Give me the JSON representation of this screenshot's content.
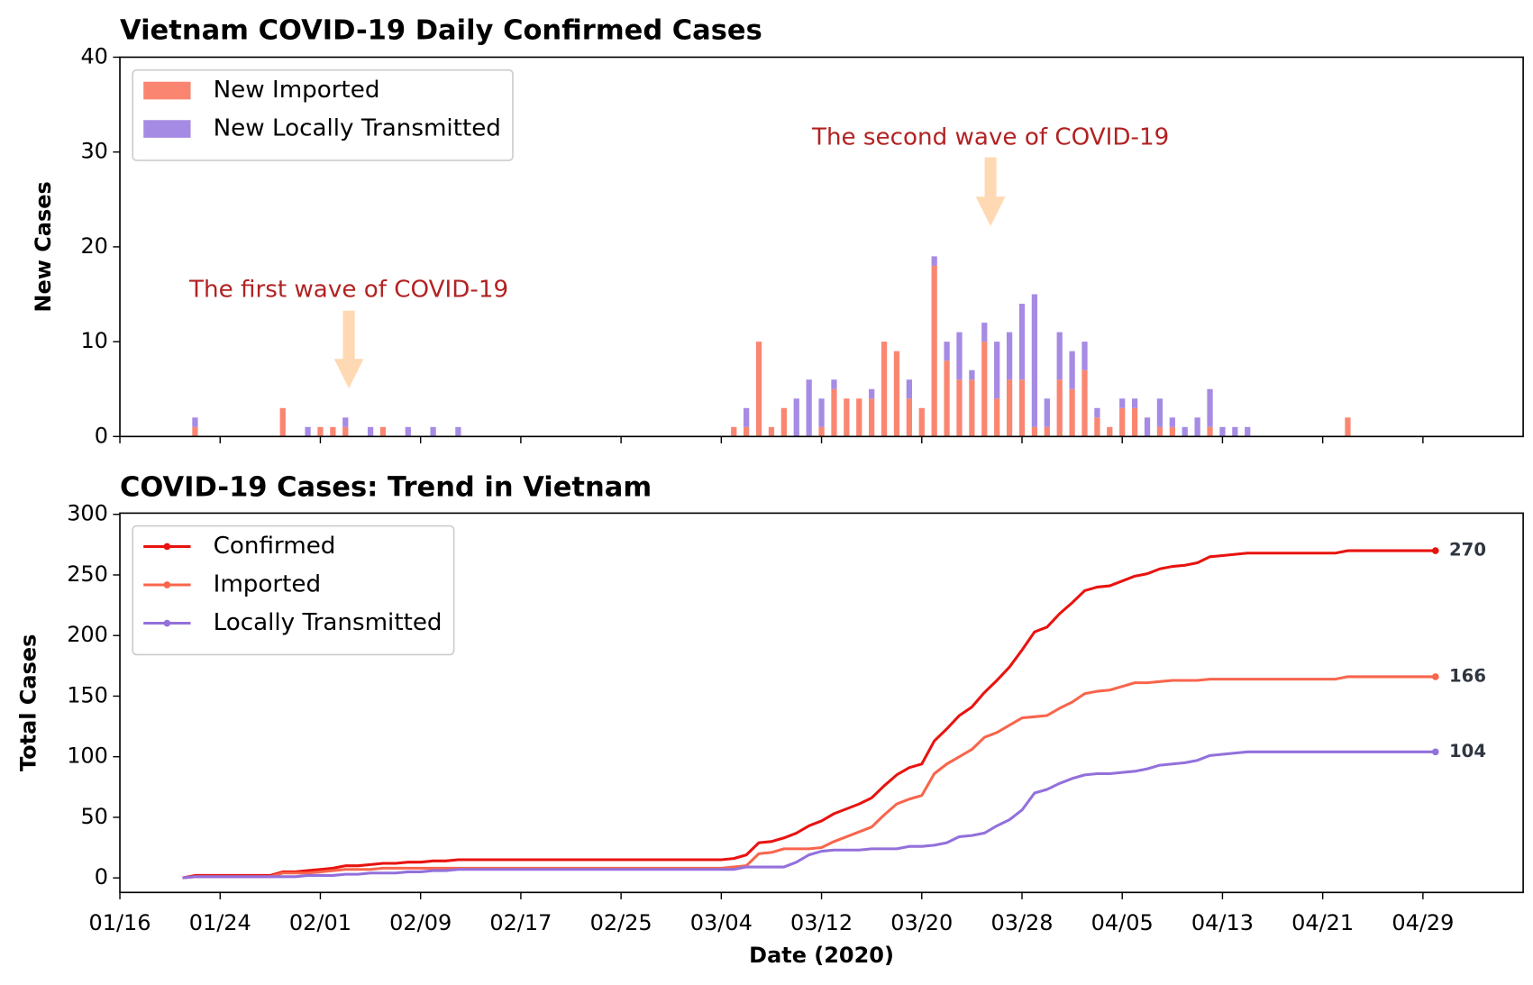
{
  "chart_data": [
    {
      "type": "bar",
      "stacked": true,
      "title": "Vietnam COVID-19 Daily Confirmed Cases",
      "ylabel": "New Cases",
      "x": [
        "01/22",
        "01/29",
        "01/31",
        "02/01",
        "02/02",
        "02/03",
        "02/05",
        "02/06",
        "02/08",
        "02/10",
        "02/12",
        "03/05",
        "03/06",
        "03/07",
        "03/08",
        "03/09",
        "03/10",
        "03/11",
        "03/12",
        "03/13",
        "03/14",
        "03/15",
        "03/16",
        "03/17",
        "03/18",
        "03/19",
        "03/20",
        "03/21",
        "03/22",
        "03/23",
        "03/24",
        "03/25",
        "03/26",
        "03/27",
        "03/28",
        "03/29",
        "03/30",
        "03/31",
        "04/01",
        "04/02",
        "04/03",
        "04/04",
        "04/05",
        "04/06",
        "04/07",
        "04/08",
        "04/09",
        "04/10",
        "04/11",
        "04/12",
        "04/13",
        "04/14",
        "04/15",
        "04/23"
      ],
      "series": [
        {
          "name": "New Imported",
          "color": "#fa8671",
          "values": [
            1,
            3,
            0,
            1,
            1,
            1,
            0,
            1,
            0,
            0,
            0,
            1,
            1,
            10,
            1,
            3,
            0,
            0,
            1,
            5,
            4,
            4,
            4,
            10,
            9,
            4,
            3,
            18,
            8,
            6,
            6,
            10,
            4,
            6,
            6,
            1,
            1,
            6,
            5,
            7,
            2,
            1,
            3,
            3,
            0,
            1,
            1,
            0,
            0,
            1,
            0,
            0,
            0,
            2
          ]
        },
        {
          "name": "New Locally Transmitted",
          "color": "#a68be4",
          "values": [
            1,
            0,
            1,
            0,
            0,
            1,
            1,
            0,
            1,
            1,
            1,
            0,
            2,
            0,
            0,
            0,
            4,
            6,
            3,
            1,
            0,
            0,
            1,
            0,
            0,
            2,
            0,
            1,
            2,
            5,
            1,
            2,
            6,
            5,
            8,
            14,
            3,
            5,
            4,
            3,
            1,
            0,
            1,
            1,
            2,
            3,
            1,
            1,
            2,
            4,
            1,
            1,
            1,
            0
          ]
        }
      ],
      "xlim": [
        "01/16",
        "05/07"
      ],
      "xticks": [
        "01/16",
        "01/24",
        "02/01",
        "02/09",
        "02/17",
        "02/25",
        "03/04",
        "03/12",
        "03/20",
        "03/28",
        "04/05",
        "04/13",
        "04/21",
        "04/29"
      ],
      "ylim": [
        0,
        40
      ],
      "yticks": [
        0,
        10,
        20,
        30,
        40
      ],
      "legend": "upper left",
      "annotations": [
        "The first wave of COVID-19",
        "The second wave of COVID-19"
      ]
    },
    {
      "type": "line",
      "title": "COVID-19 Cases: Trend in Vietnam",
      "xlabel": "Date (2020)",
      "ylabel": "Total Cases",
      "x": [
        "01/21",
        "01/22",
        "01/23",
        "01/24",
        "01/25",
        "01/26",
        "01/27",
        "01/28",
        "01/29",
        "01/30",
        "01/31",
        "02/01",
        "02/02",
        "02/03",
        "02/04",
        "02/05",
        "02/06",
        "02/07",
        "02/08",
        "02/09",
        "02/10",
        "02/11",
        "02/12",
        "02/13",
        "02/14",
        "02/15",
        "02/16",
        "02/17",
        "02/18",
        "02/19",
        "02/20",
        "02/21",
        "02/22",
        "02/23",
        "02/24",
        "02/25",
        "02/26",
        "02/27",
        "02/28",
        "02/29",
        "03/01",
        "03/02",
        "03/03",
        "03/04",
        "03/05",
        "03/06",
        "03/07",
        "03/08",
        "03/09",
        "03/10",
        "03/11",
        "03/12",
        "03/13",
        "03/14",
        "03/15",
        "03/16",
        "03/17",
        "03/18",
        "03/19",
        "03/20",
        "03/21",
        "03/22",
        "03/23",
        "03/24",
        "03/25",
        "03/26",
        "03/27",
        "03/28",
        "03/29",
        "03/30",
        "03/31",
        "04/01",
        "04/02",
        "04/03",
        "04/04",
        "04/05",
        "04/06",
        "04/07",
        "04/08",
        "04/09",
        "04/10",
        "04/11",
        "04/12",
        "04/13",
        "04/14",
        "04/15",
        "04/16",
        "04/17",
        "04/18",
        "04/19",
        "04/20",
        "04/21",
        "04/22",
        "04/23",
        "04/24",
        "04/25",
        "04/26",
        "04/27",
        "04/28",
        "04/29",
        "04/30"
      ],
      "series": [
        {
          "name": "Confirmed",
          "color": "#e8130f",
          "values": [
            0,
            2,
            2,
            2,
            2,
            2,
            2,
            2,
            5,
            5,
            6,
            7,
            8,
            10,
            10,
            11,
            12,
            12,
            13,
            13,
            14,
            14,
            15,
            15,
            15,
            15,
            15,
            15,
            15,
            15,
            15,
            15,
            15,
            15,
            15,
            15,
            15,
            15,
            15,
            15,
            15,
            15,
            15,
            15,
            16,
            19,
            29,
            30,
            33,
            37,
            43,
            47,
            53,
            57,
            61,
            66,
            76,
            85,
            91,
            94,
            113,
            123,
            134,
            141,
            153,
            163,
            174,
            188,
            203,
            207,
            218,
            227,
            237,
            240,
            241,
            245,
            249,
            251,
            255,
            257,
            258,
            260,
            265,
            266,
            267,
            268,
            268,
            268,
            268,
            268,
            268,
            268,
            268,
            270,
            270,
            270,
            270,
            270,
            270,
            270,
            270
          ]
        },
        {
          "name": "Imported",
          "color": "#f8654c",
          "values": [
            0,
            1,
            1,
            1,
            1,
            1,
            1,
            1,
            4,
            4,
            4,
            5,
            6,
            7,
            7,
            7,
            8,
            8,
            8,
            8,
            8,
            8,
            8,
            8,
            8,
            8,
            8,
            8,
            8,
            8,
            8,
            8,
            8,
            8,
            8,
            8,
            8,
            8,
            8,
            8,
            8,
            8,
            8,
            8,
            9,
            10,
            20,
            21,
            24,
            24,
            24,
            25,
            30,
            34,
            38,
            42,
            52,
            61,
            65,
            68,
            86,
            94,
            100,
            106,
            116,
            120,
            126,
            132,
            133,
            134,
            140,
            145,
            152,
            154,
            155,
            158,
            161,
            161,
            162,
            163,
            163,
            163,
            164,
            164,
            164,
            164,
            164,
            164,
            164,
            164,
            164,
            164,
            164,
            166,
            166,
            166,
            166,
            166,
            166,
            166,
            166
          ]
        },
        {
          "name": "Locally Transmitted",
          "color": "#9370db",
          "values": [
            0,
            1,
            1,
            1,
            1,
            1,
            1,
            1,
            1,
            1,
            2,
            2,
            2,
            3,
            3,
            4,
            4,
            4,
            5,
            5,
            6,
            6,
            7,
            7,
            7,
            7,
            7,
            7,
            7,
            7,
            7,
            7,
            7,
            7,
            7,
            7,
            7,
            7,
            7,
            7,
            7,
            7,
            7,
            7,
            7,
            9,
            9,
            9,
            9,
            13,
            19,
            22,
            23,
            23,
            23,
            24,
            24,
            24,
            26,
            26,
            27,
            29,
            34,
            35,
            37,
            43,
            48,
            56,
            70,
            73,
            78,
            82,
            85,
            86,
            86,
            87,
            88,
            90,
            93,
            94,
            95,
            97,
            101,
            102,
            103,
            104,
            104,
            104,
            104,
            104,
            104,
            104,
            104,
            104,
            104,
            104,
            104,
            104,
            104,
            104,
            104
          ]
        }
      ],
      "label_last": true,
      "xlim": [
        "01/16",
        "05/07"
      ],
      "xticks": [
        "01/16",
        "01/24",
        "02/01",
        "02/09",
        "02/17",
        "02/25",
        "03/04",
        "03/12",
        "03/20",
        "03/28",
        "04/05",
        "04/13",
        "04/21",
        "04/29"
      ],
      "ylim": [
        -12,
        301
      ],
      "yticks": [
        0,
        50,
        100,
        150,
        200,
        250,
        300
      ],
      "legend": "upper left"
    }
  ]
}
